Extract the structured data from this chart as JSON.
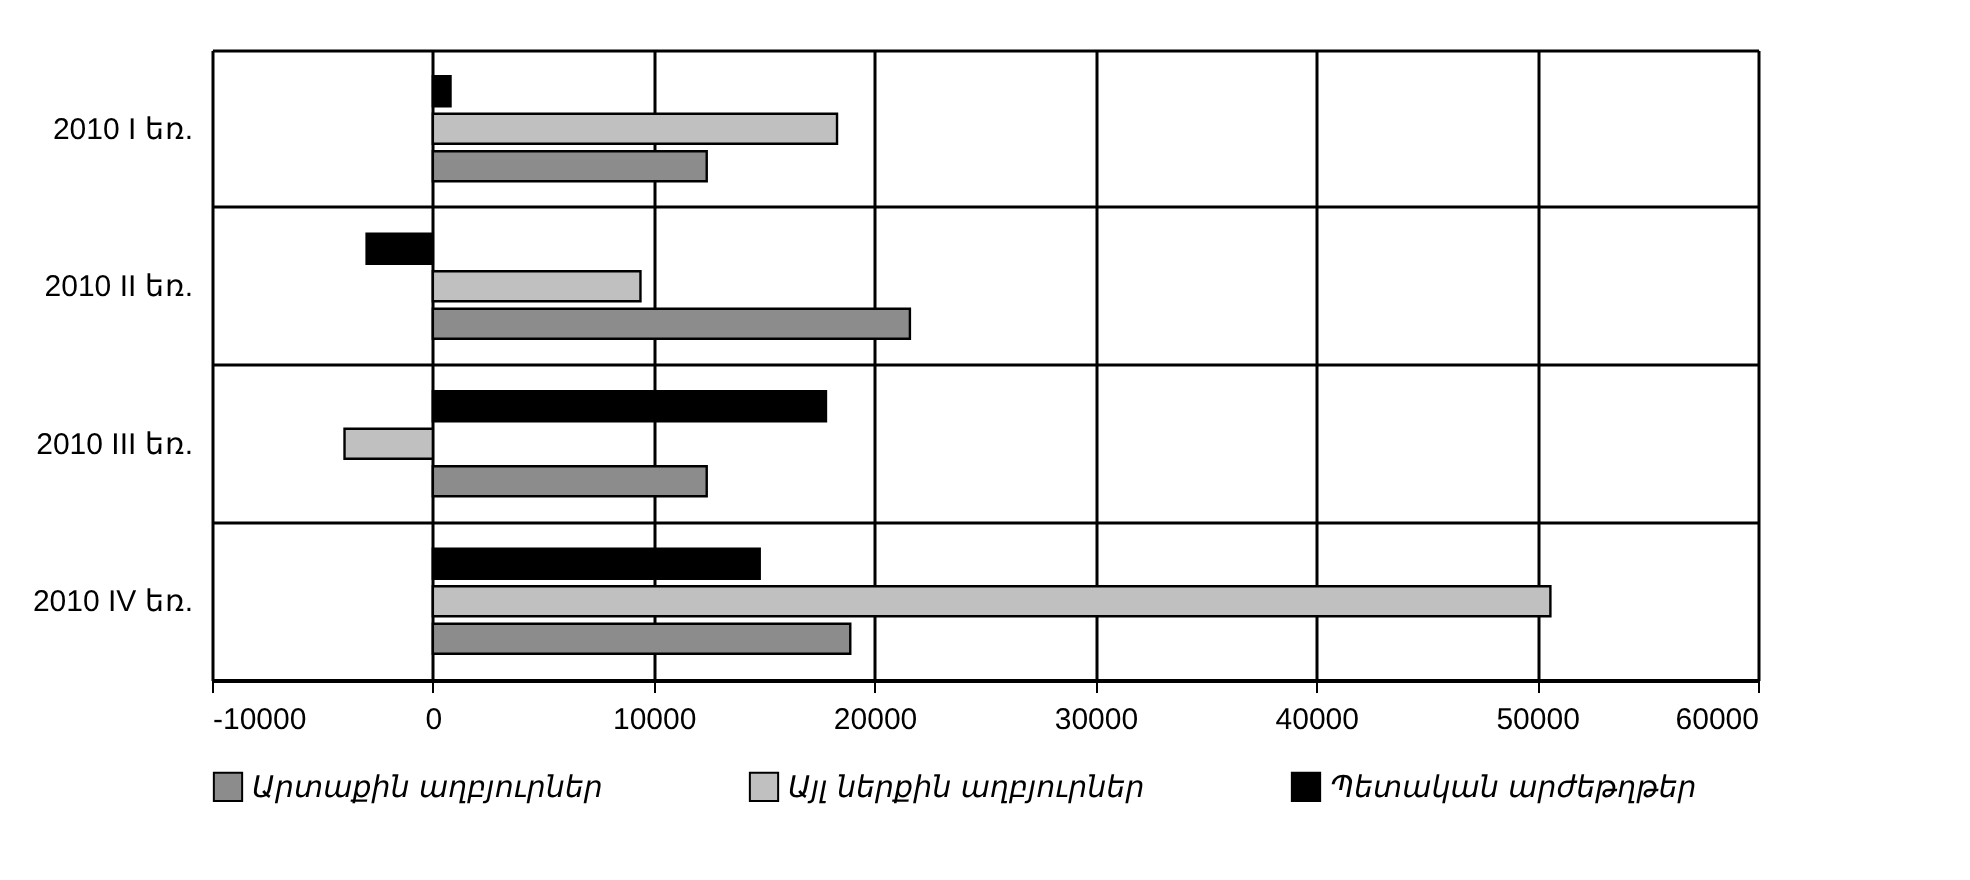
{
  "chart_data": {
    "type": "bar",
    "orientation": "horizontal",
    "categories": [
      "2010 I եռ.",
      "2010 II եռ.",
      "2010 III եռ.",
      "2010 IV եռ."
    ],
    "series": [
      {
        "name": "Արտաքին աղբյուրներ",
        "color": "#8c8c8c",
        "values": [
          12400,
          21600,
          12400,
          18900
        ]
      },
      {
        "name": "Այլ ներքին աղբյուրներ",
        "color": "#c0c0c0",
        "values": [
          18300,
          9400,
          -4000,
          50600
        ]
      },
      {
        "name": "Պետական արժեթղթեր",
        "color": "#000000",
        "values": [
          800,
          -3000,
          17800,
          14800
        ]
      }
    ],
    "xlim": [
      -10000,
      60000
    ],
    "xticks": [
      -10000,
      0,
      10000,
      20000,
      30000,
      40000,
      50000,
      60000
    ],
    "grid": true,
    "legend": "bottom"
  }
}
